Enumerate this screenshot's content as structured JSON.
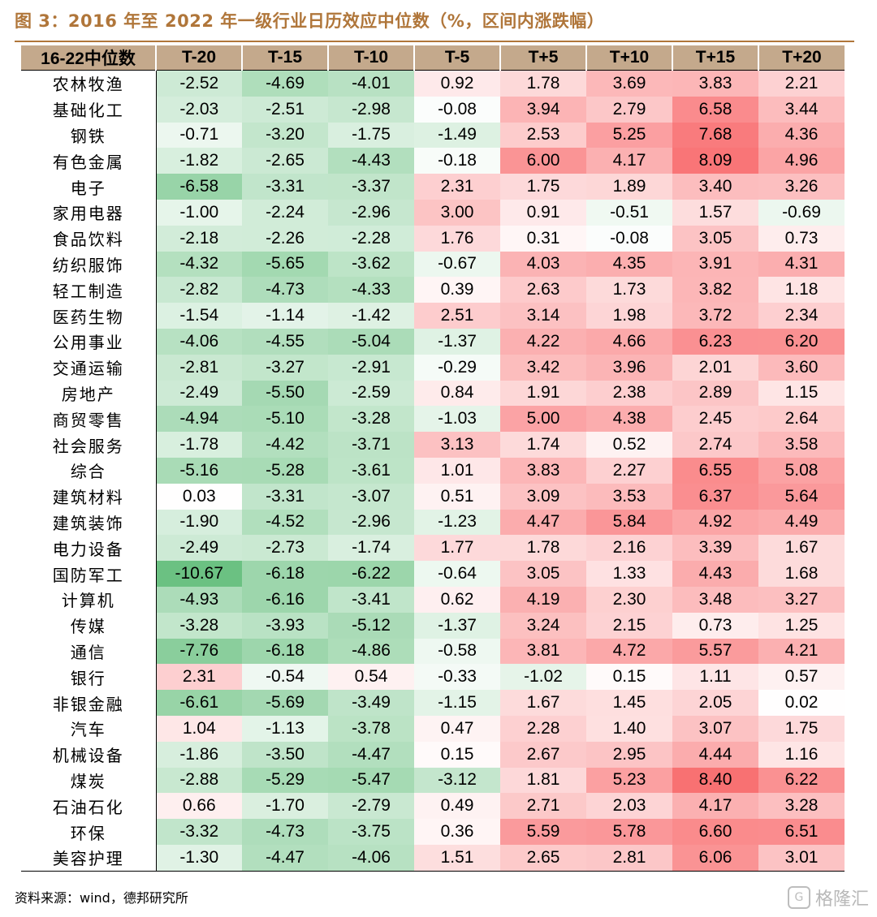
{
  "title": "图 3：2016 年至 2022 年一级行业日历效应中位数（%，区间内涨跌幅）",
  "source": "资料来源：wind，德邦研究所",
  "watermark": {
    "text": "格隆汇",
    "icon": "G"
  },
  "colors": {
    "title": "#b0763a",
    "header_bg": "#c4a98c",
    "negative_max": "#63be7b",
    "positive_max": "#f8696b"
  },
  "table": {
    "columns": [
      "16-22中位数",
      "T-20",
      "T-15",
      "T-10",
      "T-5",
      "T+5",
      "T+10",
      "T+15",
      "T+20"
    ],
    "rows": [
      {
        "name": "农林牧渔",
        "values": [
          "-2.52",
          "-4.69",
          "-4.01",
          "0.92",
          "1.78",
          "3.69",
          "3.83",
          "2.21"
        ]
      },
      {
        "name": "基础化工",
        "values": [
          "-2.03",
          "-2.51",
          "-2.98",
          "-0.08",
          "3.94",
          "2.79",
          "6.58",
          "3.44"
        ]
      },
      {
        "name": "钢铁",
        "values": [
          "-0.71",
          "-3.20",
          "-1.75",
          "-1.49",
          "2.53",
          "5.25",
          "7.68",
          "4.36"
        ]
      },
      {
        "name": "有色金属",
        "values": [
          "-1.82",
          "-2.65",
          "-4.43",
          "-0.18",
          "6.00",
          "4.17",
          "8.09",
          "4.96"
        ]
      },
      {
        "name": "电子",
        "values": [
          "-6.58",
          "-3.31",
          "-3.37",
          "2.31",
          "1.75",
          "1.89",
          "3.40",
          "3.26"
        ]
      },
      {
        "name": "家用电器",
        "values": [
          "-1.00",
          "-2.24",
          "-2.96",
          "3.00",
          "0.91",
          "-0.51",
          "1.57",
          "-0.69"
        ]
      },
      {
        "name": "食品饮料",
        "values": [
          "-2.18",
          "-2.26",
          "-2.28",
          "1.76",
          "0.31",
          "-0.08",
          "3.05",
          "0.73"
        ]
      },
      {
        "name": "纺织服饰",
        "values": [
          "-4.32",
          "-5.65",
          "-3.62",
          "-0.67",
          "4.03",
          "4.35",
          "3.91",
          "4.31"
        ]
      },
      {
        "name": "轻工制造",
        "values": [
          "-2.82",
          "-4.73",
          "-4.33",
          "0.39",
          "2.63",
          "1.73",
          "3.82",
          "1.18"
        ]
      },
      {
        "name": "医药生物",
        "values": [
          "-1.54",
          "-1.14",
          "-1.42",
          "2.51",
          "3.14",
          "1.98",
          "3.72",
          "2.34"
        ]
      },
      {
        "name": "公用事业",
        "values": [
          "-4.06",
          "-4.55",
          "-5.04",
          "-1.37",
          "4.22",
          "4.66",
          "6.23",
          "6.20"
        ]
      },
      {
        "name": "交通运输",
        "values": [
          "-2.81",
          "-3.27",
          "-2.91",
          "-0.29",
          "3.42",
          "3.96",
          "2.01",
          "3.60"
        ]
      },
      {
        "name": "房地产",
        "values": [
          "-2.49",
          "-5.50",
          "-2.59",
          "0.84",
          "1.91",
          "2.38",
          "2.89",
          "1.15"
        ]
      },
      {
        "name": "商贸零售",
        "values": [
          "-4.94",
          "-5.10",
          "-3.28",
          "-1.03",
          "5.00",
          "4.38",
          "2.45",
          "2.64"
        ]
      },
      {
        "name": "社会服务",
        "values": [
          "-1.78",
          "-4.42",
          "-3.71",
          "3.13",
          "1.74",
          "0.52",
          "2.74",
          "3.58"
        ]
      },
      {
        "name": "综合",
        "values": [
          "-5.16",
          "-5.28",
          "-3.61",
          "1.01",
          "3.83",
          "2.27",
          "6.55",
          "5.08"
        ]
      },
      {
        "name": "建筑材料",
        "values": [
          "0.03",
          "-3.31",
          "-3.07",
          "0.51",
          "3.09",
          "3.53",
          "6.37",
          "5.64"
        ]
      },
      {
        "name": "建筑装饰",
        "values": [
          "-1.90",
          "-4.52",
          "-2.96",
          "-1.23",
          "4.47",
          "5.84",
          "4.92",
          "4.49"
        ]
      },
      {
        "name": "电力设备",
        "values": [
          "-2.49",
          "-2.73",
          "-1.74",
          "1.77",
          "1.78",
          "2.16",
          "3.39",
          "1.67"
        ]
      },
      {
        "name": "国防军工",
        "values": [
          "-10.67",
          "-6.18",
          "-6.22",
          "-0.64",
          "3.05",
          "1.33",
          "4.43",
          "1.68"
        ]
      },
      {
        "name": "计算机",
        "values": [
          "-4.93",
          "-6.16",
          "-3.41",
          "0.62",
          "4.19",
          "2.30",
          "3.48",
          "3.27"
        ]
      },
      {
        "name": "传媒",
        "values": [
          "-3.28",
          "-3.93",
          "-5.12",
          "-1.37",
          "3.24",
          "2.15",
          "0.73",
          "1.25"
        ]
      },
      {
        "name": "通信",
        "values": [
          "-7.76",
          "-6.18",
          "-4.86",
          "-0.58",
          "3.81",
          "4.72",
          "5.57",
          "4.21"
        ]
      },
      {
        "name": "银行",
        "values": [
          "2.31",
          "-0.54",
          "0.54",
          "-0.33",
          "-1.02",
          "0.15",
          "1.11",
          "0.57"
        ]
      },
      {
        "name": "非银金融",
        "values": [
          "-6.61",
          "-5.69",
          "-3.49",
          "-1.15",
          "1.67",
          "1.45",
          "2.05",
          "0.02"
        ]
      },
      {
        "name": "汽车",
        "values": [
          "1.04",
          "-1.13",
          "-3.78",
          "0.47",
          "2.28",
          "1.40",
          "3.07",
          "1.75"
        ]
      },
      {
        "name": "机械设备",
        "values": [
          "-1.86",
          "-3.50",
          "-4.47",
          "0.15",
          "2.67",
          "2.95",
          "4.44",
          "1.16"
        ]
      },
      {
        "name": "煤炭",
        "values": [
          "-2.88",
          "-5.29",
          "-5.47",
          "-3.12",
          "1.81",
          "5.23",
          "8.40",
          "6.22"
        ]
      },
      {
        "name": "石油石化",
        "values": [
          "0.66",
          "-1.70",
          "-2.79",
          "0.49",
          "2.71",
          "2.03",
          "4.17",
          "3.28"
        ]
      },
      {
        "name": "环保",
        "values": [
          "-3.32",
          "-4.73",
          "-3.75",
          "0.36",
          "5.59",
          "5.78",
          "6.60",
          "6.51"
        ]
      },
      {
        "name": "美容护理",
        "values": [
          "-1.30",
          "-4.47",
          "-4.06",
          "1.51",
          "2.65",
          "2.81",
          "6.06",
          "3.01"
        ]
      }
    ]
  }
}
